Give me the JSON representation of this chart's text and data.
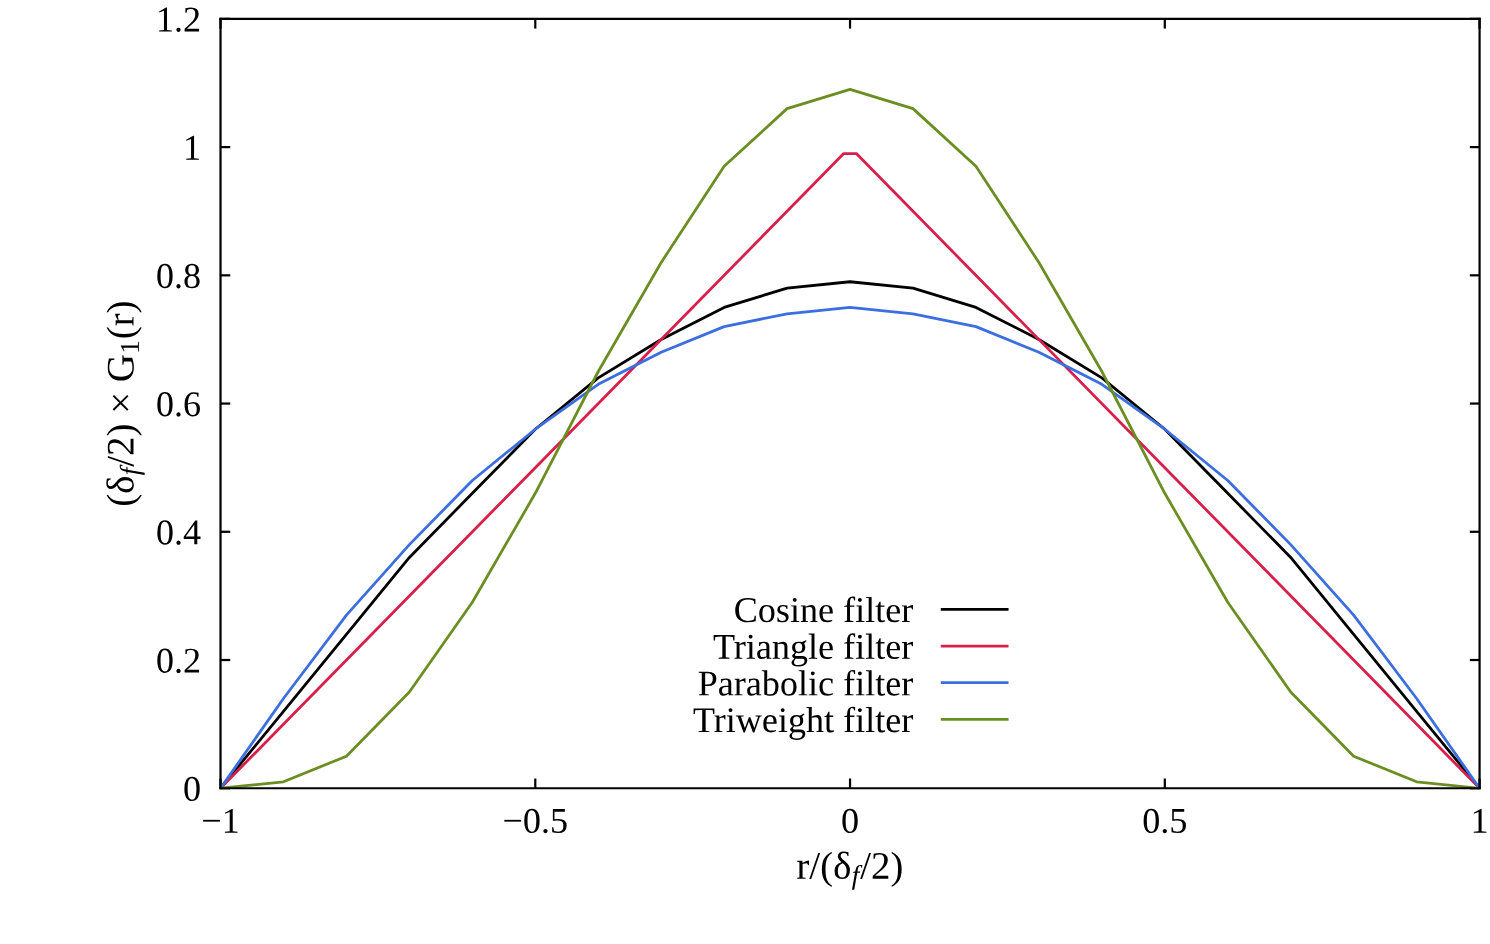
{
  "chart_data": {
    "type": "line",
    "xlabel": "r/(δ$_{f}$/2)",
    "ylabel": "(δ$_{f}$/2) × G$_{1}$(r)",
    "xlim": [
      -1,
      1
    ],
    "ylim": [
      0,
      1.2
    ],
    "xticks": [
      {
        "value": -1,
        "label": "−1"
      },
      {
        "value": -0.5,
        "label": "−0.5"
      },
      0,
      0.5,
      1
    ],
    "yticks": [
      0,
      0.2,
      0.4,
      0.6,
      0.8,
      1,
      1.2
    ],
    "grid": false,
    "legend": "bottom",
    "marker": "none",
    "line_style": "solid",
    "series": [
      {
        "name": "Cosine filter",
        "color": "#000000",
        "x": [
          -1,
          -0.9,
          -0.8,
          -0.7,
          -0.6,
          -0.5,
          -0.4,
          -0.3,
          -0.2,
          -0.1,
          0,
          0.1,
          0.2,
          0.3,
          0.4,
          0.5,
          0.6,
          0.7,
          0.8,
          0.9,
          1
        ],
        "values": [
          0,
          0.12,
          0.24,
          0.36,
          0.46,
          0.56,
          0.64,
          0.7,
          0.75,
          0.78,
          0.79,
          0.78,
          0.75,
          0.7,
          0.64,
          0.56,
          0.46,
          0.36,
          0.24,
          0.12,
          0
        ]
      },
      {
        "name": "Triangle filter",
        "color": "#d81e4a",
        "x": [
          -1,
          -0.5,
          -0.01,
          0.01,
          0.5,
          1
        ],
        "values": [
          0,
          0.5,
          0.99,
          0.99,
          0.5,
          0
        ]
      },
      {
        "name": "Parabolic filter",
        "color": "#3b6fe0",
        "x": [
          -1,
          -0.9,
          -0.8,
          -0.7,
          -0.6,
          -0.5,
          -0.4,
          -0.3,
          -0.2,
          -0.1,
          0,
          0.1,
          0.2,
          0.3,
          0.4,
          0.5,
          0.6,
          0.7,
          0.8,
          0.9,
          1
        ],
        "values": [
          0,
          0.14,
          0.27,
          0.38,
          0.48,
          0.56,
          0.63,
          0.68,
          0.72,
          0.74,
          0.75,
          0.74,
          0.72,
          0.68,
          0.63,
          0.56,
          0.48,
          0.38,
          0.27,
          0.14,
          0
        ]
      },
      {
        "name": "Triweight filter",
        "color": "#6b8e23",
        "x": [
          -1,
          -0.9,
          -0.8,
          -0.7,
          -0.6,
          -0.5,
          -0.4,
          -0.3,
          -0.2,
          -0.1,
          0,
          0.1,
          0.2,
          0.3,
          0.4,
          0.5,
          0.6,
          0.7,
          0.8,
          0.9,
          1
        ],
        "values": [
          0,
          0.01,
          0.05,
          0.15,
          0.29,
          0.46,
          0.65,
          0.82,
          0.97,
          1.06,
          1.09,
          1.06,
          0.97,
          0.82,
          0.65,
          0.46,
          0.29,
          0.15,
          0.05,
          0.01,
          0
        ]
      }
    ]
  }
}
